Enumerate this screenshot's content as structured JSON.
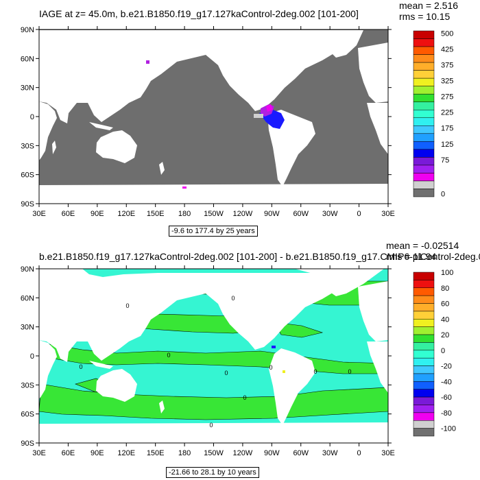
{
  "panel1": {
    "title": "IAGE at z=  45.0m, b.e21.B1850.f19_g17.127kaControl-2deg.002 [101-200]",
    "mean": "mean = 2.516",
    "rms": "rms = 10.15",
    "range": "-9.6 to 177.4 by 25 years",
    "lat_labels": [
      "90N",
      "60N",
      "30N",
      "0",
      "30S",
      "60S",
      "90S"
    ],
    "lon_labels": [
      "30E",
      "60E",
      "90E",
      "120E",
      "150E",
      "180",
      "150W",
      "120W",
      "90W",
      "60W",
      "30W",
      "0",
      "30E"
    ],
    "colorbar_labels": [
      "500",
      "425",
      "375",
      "325",
      "275",
      "225",
      "175",
      "125",
      "75",
      "0"
    ],
    "colorbar_colors": [
      "#c80000",
      "#ee1010",
      "#ff5a00",
      "#ff8c1a",
      "#ffae2a",
      "#ffd038",
      "#f0f020",
      "#a0f030",
      "#30e030",
      "#34f0a0",
      "#32ffd2",
      "#30f0f0",
      "#40c8ff",
      "#20a0ff",
      "#1060ff",
      "#0000f0",
      "#7a1ad8",
      "#a020f0",
      "#f000f0",
      "#d0d0d0",
      "#707070"
    ]
  },
  "panel2": {
    "title": "b.e21.B1850.f19_g17.127kaControl-2deg.002 [101-200] - b.e21.B1850.f19_g17.CMIP6-piControl-2deg.0",
    "mean": "mean = -0.02514",
    "rms": "rms = 11.94",
    "range": "-21.66 to 28.1 by 10 years",
    "lat_labels": [
      "90N",
      "60N",
      "30N",
      "0",
      "30S",
      "60S",
      "90S"
    ],
    "lon_labels": [
      "30E",
      "60E",
      "90E",
      "120E",
      "150E",
      "180",
      "150W",
      "120W",
      "90W",
      "60W",
      "30W",
      "0",
      "30E"
    ],
    "colorbar_labels": [
      "100",
      "80",
      "60",
      "40",
      "20",
      "0",
      "-20",
      "-40",
      "-60",
      "-80",
      "-100"
    ],
    "colorbar_colors": [
      "#c80000",
      "#ee1010",
      "#ff5a00",
      "#ff8c1a",
      "#ffae2a",
      "#ffd038",
      "#f0f020",
      "#a0f030",
      "#30e030",
      "#34f0a0",
      "#32ffd2",
      "#30f0f0",
      "#40c8ff",
      "#20a0ff",
      "#1060ff",
      "#0000f0",
      "#7a1ad8",
      "#a020f0",
      "#f000f0",
      "#d0d0d0",
      "#707070"
    ],
    "contour_labels": [
      "0",
      "0",
      "0",
      "0",
      "0",
      "0",
      "0",
      "0",
      "0",
      "0"
    ]
  },
  "colors": {
    "ocean_panel1": "#6e6e6e",
    "land": "#ffffff",
    "ocean_panel2_base": "#35f5d2",
    "positive_band": "#38e636",
    "anomaly_purple": "#b020e0",
    "anomaly_blue": "#1a1aff",
    "anomaly_magenta": "#f000f0"
  }
}
